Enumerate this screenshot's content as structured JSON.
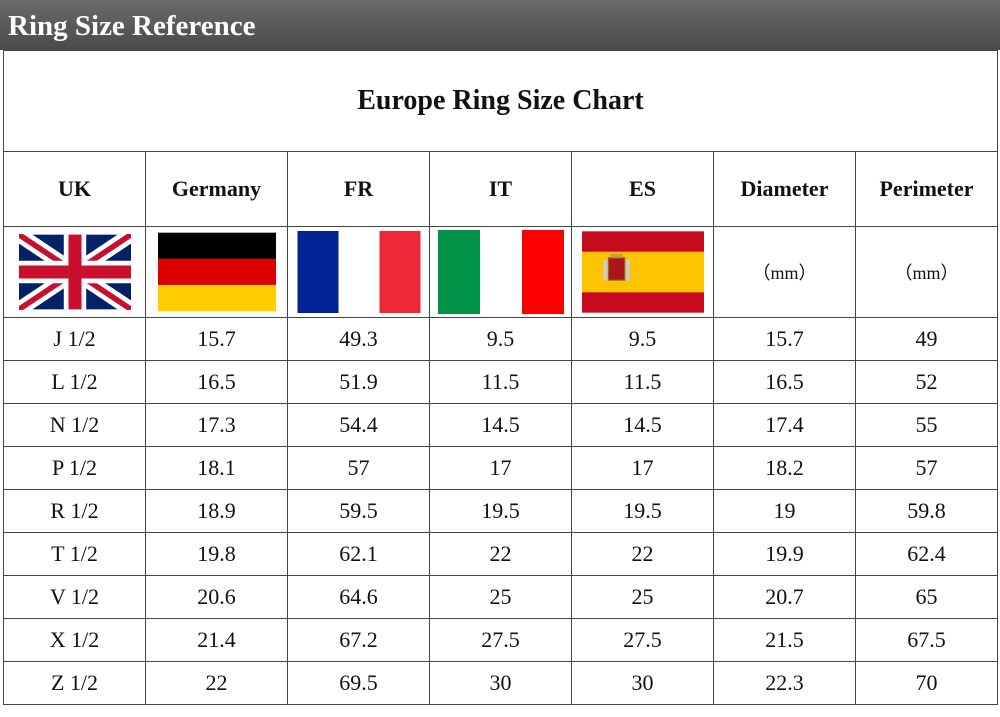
{
  "header": {
    "title": "Ring Size Reference"
  },
  "table": {
    "title": "Europe Ring Size Chart",
    "columns": [
      "UK",
      "Germany",
      "FR",
      "IT",
      "ES",
      "Diameter",
      "Perimeter"
    ],
    "units": [
      "（mm）",
      "（mm）"
    ],
    "rows": [
      [
        "J 1/2",
        "15.7",
        "49.3",
        "9.5",
        "9.5",
        "15.7",
        "49"
      ],
      [
        "L 1/2",
        "16.5",
        "51.9",
        "11.5",
        "11.5",
        "16.5",
        "52"
      ],
      [
        "N 1/2",
        "17.3",
        "54.4",
        "14.5",
        "14.5",
        "17.4",
        "55"
      ],
      [
        "P 1/2",
        "18.1",
        "57",
        "17",
        "17",
        "18.2",
        "57"
      ],
      [
        "R 1/2",
        "18.9",
        "59.5",
        "19.5",
        "19.5",
        "19",
        "59.8"
      ],
      [
        "T 1/2",
        "19.8",
        "62.1",
        "22",
        "22",
        "19.9",
        "62.4"
      ],
      [
        "V 1/2",
        "20.6",
        "64.6",
        "25",
        "25",
        "20.7",
        "65"
      ],
      [
        "X 1/2",
        "21.4",
        "67.2",
        "27.5",
        "27.5",
        "21.5",
        "67.5"
      ],
      [
        "Z 1/2",
        "22",
        "69.5",
        "30",
        "30",
        "22.3",
        "70"
      ]
    ]
  }
}
